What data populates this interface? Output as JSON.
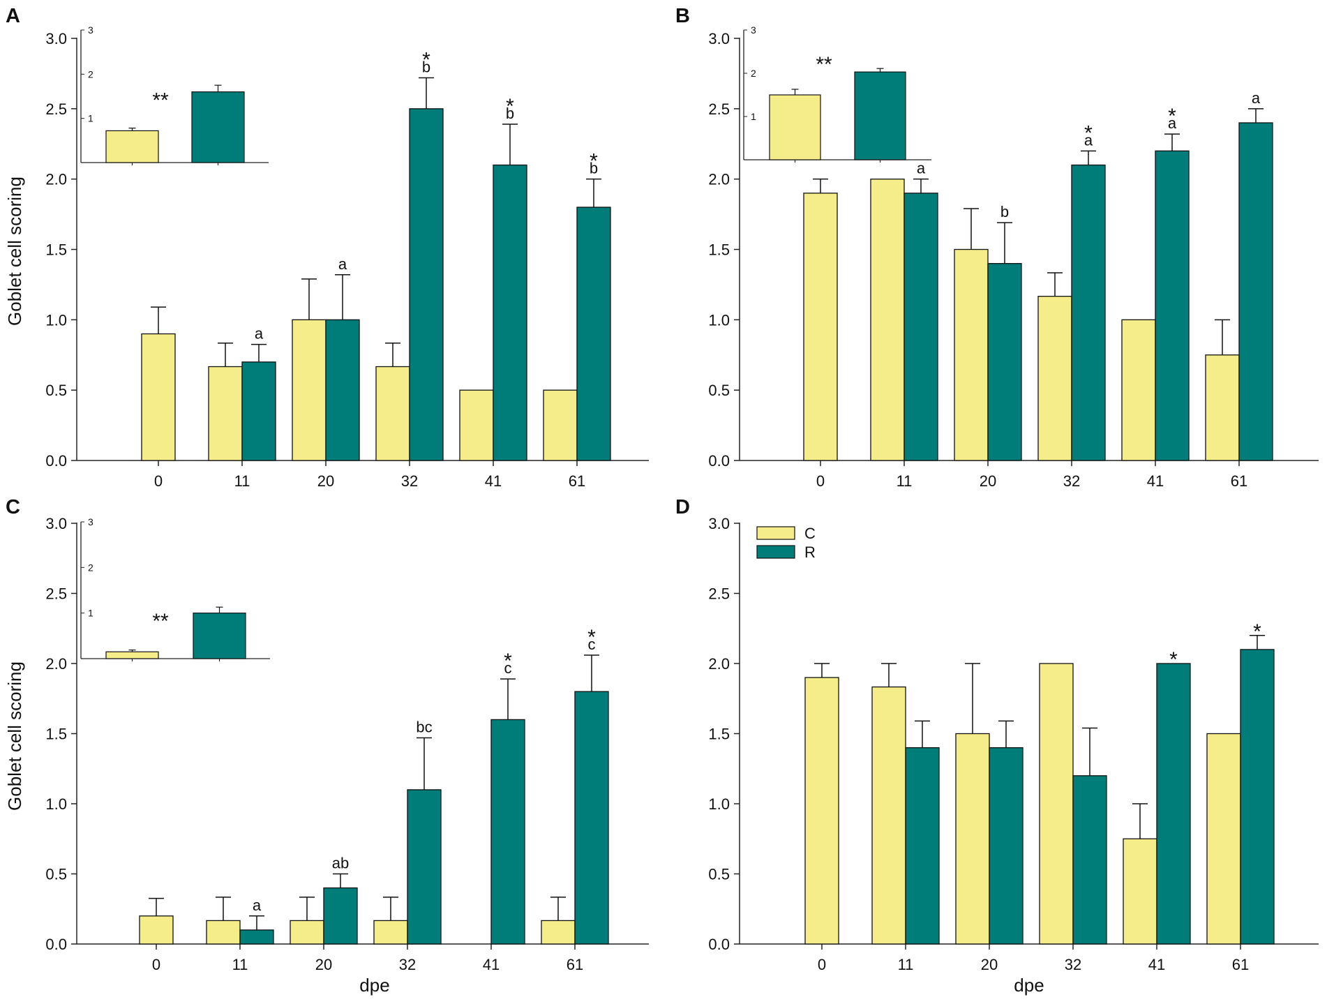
{
  "colors": {
    "C": "#f5ec8a",
    "R": "#007d78",
    "axis": "#222222"
  },
  "chart_data": [
    {
      "panel": "A",
      "type": "bar",
      "ylabel": "Goblet cell scoring",
      "xlabel": "",
      "ylim": [
        0,
        3
      ],
      "yticks": [
        "0.0",
        "0.5",
        "1.0",
        "1.5",
        "2.0",
        "2.5",
        "3.0"
      ],
      "categories": [
        "0",
        "11",
        "20",
        "32",
        "41",
        "61"
      ],
      "series": [
        {
          "name": "C",
          "values": [
            0.9,
            0.667,
            1.0,
            0.667,
            0.5,
            0.5
          ],
          "errors": [
            0.19,
            0.167,
            0.29,
            0.167,
            0,
            0
          ]
        },
        {
          "name": "R",
          "values": [
            null,
            0.7,
            1.0,
            2.5,
            2.1,
            1.8
          ],
          "errors": [
            null,
            0.125,
            0.32,
            0.22,
            0.29,
            0.2
          ]
        }
      ],
      "annotations": [
        {
          "category": "11",
          "letter": "a",
          "star": ""
        },
        {
          "category": "20",
          "letter": "a",
          "star": ""
        },
        {
          "category": "32",
          "letter": "b",
          "star": "*"
        },
        {
          "category": "41",
          "letter": "b",
          "star": "*"
        },
        {
          "category": "61",
          "letter": "b",
          "star": "*"
        }
      ],
      "inset": {
        "ylim": [
          0,
          3
        ],
        "yticks": [
          "1",
          "2",
          "3"
        ],
        "C": 0.72,
        "C_err": 0.06,
        "R": 1.6,
        "R_err": 0.15,
        "label": "**"
      }
    },
    {
      "panel": "B",
      "type": "bar",
      "ylabel": "",
      "xlabel": "",
      "ylim": [
        0,
        3
      ],
      "yticks": [
        "0.0",
        "0.5",
        "1.0",
        "1.5",
        "2.0",
        "2.5",
        "3.0"
      ],
      "categories": [
        "0",
        "11",
        "20",
        "32",
        "41",
        "61"
      ],
      "series": [
        {
          "name": "C",
          "values": [
            1.9,
            2.0,
            1.5,
            1.167,
            1.0,
            0.75
          ],
          "errors": [
            0.1,
            0,
            0.29,
            0.167,
            0,
            0.25
          ]
        },
        {
          "name": "R",
          "values": [
            null,
            1.9,
            1.4,
            2.1,
            2.2,
            2.4
          ],
          "errors": [
            null,
            0.1,
            0.29,
            0.1,
            0.12,
            0.1
          ]
        }
      ],
      "annotations": [
        {
          "category": "11",
          "letter": "a",
          "star": ""
        },
        {
          "category": "20",
          "letter": "b",
          "star": ""
        },
        {
          "category": "32",
          "letter": "a",
          "star": "*"
        },
        {
          "category": "41",
          "letter": "a",
          "star": "*"
        },
        {
          "category": "61",
          "letter": "a",
          "star": ""
        }
      ],
      "inset": {
        "ylim": [
          0,
          3
        ],
        "yticks": [
          "1",
          "2",
          "3"
        ],
        "C": 1.5,
        "C_err": 0.13,
        "R": 2.03,
        "R_err": 0.08,
        "label": "**"
      }
    },
    {
      "panel": "C",
      "type": "bar",
      "ylabel": "Goblet cell scoring",
      "xlabel": "dpe",
      "ylim": [
        0,
        3
      ],
      "yticks": [
        "0.0",
        "0.5",
        "1.0",
        "1.5",
        "2.0",
        "2.5",
        "3.0"
      ],
      "categories": [
        "0",
        "11",
        "20",
        "32",
        "41",
        "61"
      ],
      "series": [
        {
          "name": "C",
          "values": [
            0.2,
            0.167,
            0.167,
            0.167,
            0,
            0.167
          ],
          "errors": [
            0.125,
            0.167,
            0.167,
            0.167,
            0,
            0.167
          ]
        },
        {
          "name": "R",
          "values": [
            null,
            0.1,
            0.4,
            1.1,
            1.6,
            1.8
          ],
          "errors": [
            null,
            0.1,
            0.1,
            0.37,
            0.29,
            0.26
          ]
        }
      ],
      "annotations": [
        {
          "category": "11",
          "letter": "a",
          "star": ""
        },
        {
          "category": "20",
          "letter": "ab",
          "star": ""
        },
        {
          "category": "32",
          "letter": "bc",
          "star": ""
        },
        {
          "category": "41",
          "letter": "c",
          "star": "*"
        },
        {
          "category": "61",
          "letter": "c",
          "star": "*"
        }
      ],
      "inset": {
        "ylim": [
          0,
          3
        ],
        "yticks": [
          "1",
          "2",
          "3"
        ],
        "C": 0.15,
        "C_err": 0.04,
        "R": 1.0,
        "R_err": 0.13,
        "label": "**"
      }
    },
    {
      "panel": "D",
      "type": "bar",
      "ylabel": "",
      "xlabel": "dpe",
      "ylim": [
        0,
        3
      ],
      "yticks": [
        "0.0",
        "0.5",
        "1.0",
        "1.5",
        "2.0",
        "2.5",
        "3.0"
      ],
      "categories": [
        "0",
        "11",
        "20",
        "32",
        "41",
        "61"
      ],
      "series": [
        {
          "name": "C",
          "values": [
            1.9,
            1.833,
            1.5,
            2.0,
            0.75,
            1.5
          ],
          "errors": [
            0.1,
            0.167,
            0.5,
            0,
            0.25,
            0
          ]
        },
        {
          "name": "R",
          "values": [
            null,
            1.4,
            1.4,
            1.2,
            2.0,
            2.1
          ],
          "errors": [
            null,
            0.19,
            0.19,
            0.34,
            0,
            0.1
          ]
        }
      ],
      "annotations": [
        {
          "category": "41",
          "letter": "",
          "star": "*"
        },
        {
          "category": "61",
          "letter": "",
          "star": "*"
        }
      ],
      "legend": {
        "entries": [
          "C",
          "R"
        ],
        "position": "top-left"
      }
    }
  ]
}
